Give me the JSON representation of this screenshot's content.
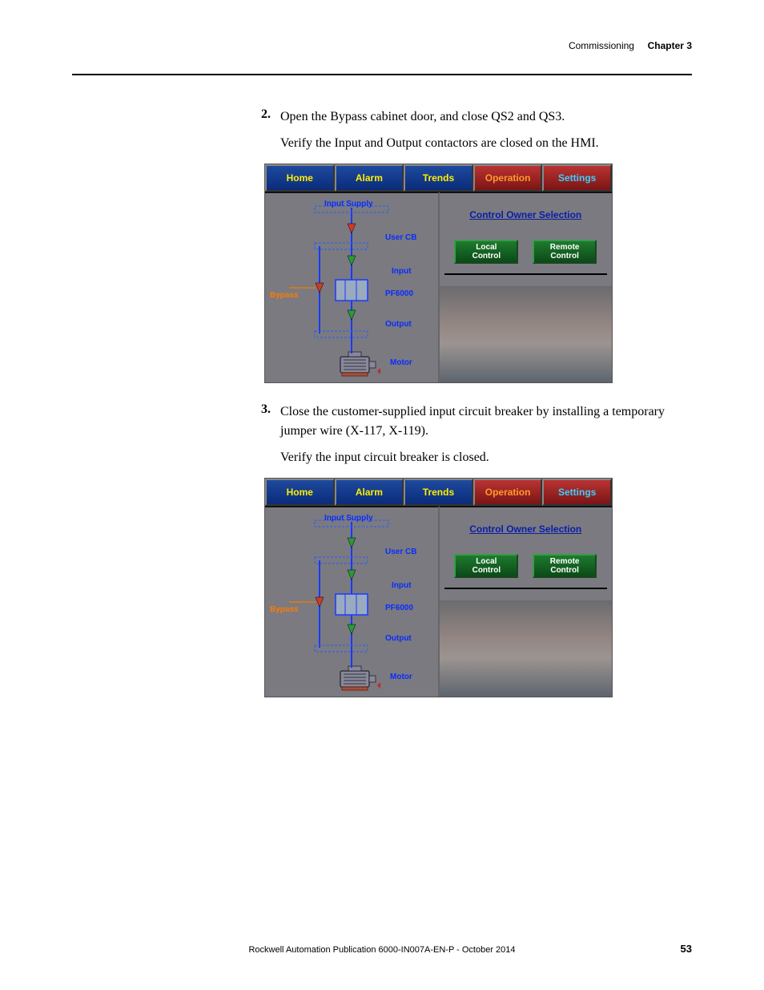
{
  "header": {
    "section": "Commissioning",
    "chapter": "Chapter 3"
  },
  "steps": [
    {
      "num": "2.",
      "text": "Open the Bypass cabinet door, and close QS2 and QS3.",
      "sub": "Verify the Input and Output contactors are closed on the HMI."
    },
    {
      "num": "3.",
      "text": "Close the customer-supplied input circuit breaker by installing a temporary jumper wire (X-117, X-119).",
      "sub": "Verify the input circuit breaker is closed."
    }
  ],
  "hmi": {
    "tabs": {
      "home": "Home",
      "alarm": "Alarm",
      "trends": "Trends",
      "operation": "Operation",
      "settings": "Settings"
    },
    "labels": {
      "input_supply": "Input Supply",
      "bypass": "Bypass",
      "user_cb": "User CB",
      "input": "Input",
      "pf6000": "PF6000",
      "output": "Output",
      "motor": "Motor"
    },
    "right": {
      "owner_title": "Control Owner Selection",
      "local": "Local\nControl",
      "remote": "Remote\nControl"
    },
    "diagram": {
      "colors": {
        "red_contactor": "#d03a2a",
        "green_contactor": "#2a9a3a",
        "line": "#1a3aff",
        "section_stroke": "#2a5aff",
        "pf_box_fill": "#9aaabf",
        "pf_box_stroke": "#1a3aff",
        "motor_fill": "#888899",
        "motor_stroke": "#333344"
      }
    },
    "variants": [
      {
        "comment": "after step 2 — User CB open (red), Input/Output closed (green), Bypass open (red)",
        "user_cb": "open",
        "input": "closed",
        "output": "closed",
        "bypass": "open"
      },
      {
        "comment": "after step 3 — User CB closed (green), Input/Output closed (green), Bypass open (red)",
        "user_cb": "closed",
        "input": "closed",
        "output": "closed",
        "bypass": "open"
      }
    ]
  },
  "footer": {
    "pub": "Rockwell Automation Publication 6000-IN007A-EN-P - October 2014",
    "page": "53"
  }
}
